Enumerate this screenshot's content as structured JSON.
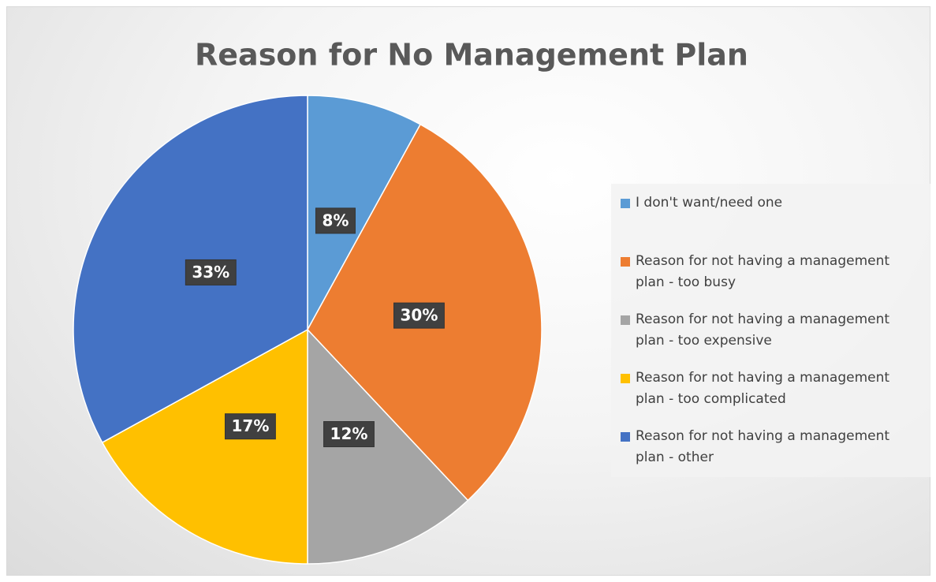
{
  "chart_data": {
    "type": "pie",
    "title": "Reason for No Management Plan",
    "categories": [
      "I don't want/need one",
      "Reason for not having a management plan - too busy",
      "Reason for not having a management plan - too expensive",
      "Reason for not having a management plan - too complicated",
      "Reason for not having a management plan - other"
    ],
    "values": [
      8,
      30,
      12,
      17,
      33
    ],
    "value_labels": [
      "8%",
      "30%",
      "12%",
      "17%",
      "33%"
    ],
    "colors": [
      "#5b9bd5",
      "#ed7d31",
      "#a5a5a5",
      "#ffc000",
      "#4472c4"
    ],
    "legend": "right"
  }
}
